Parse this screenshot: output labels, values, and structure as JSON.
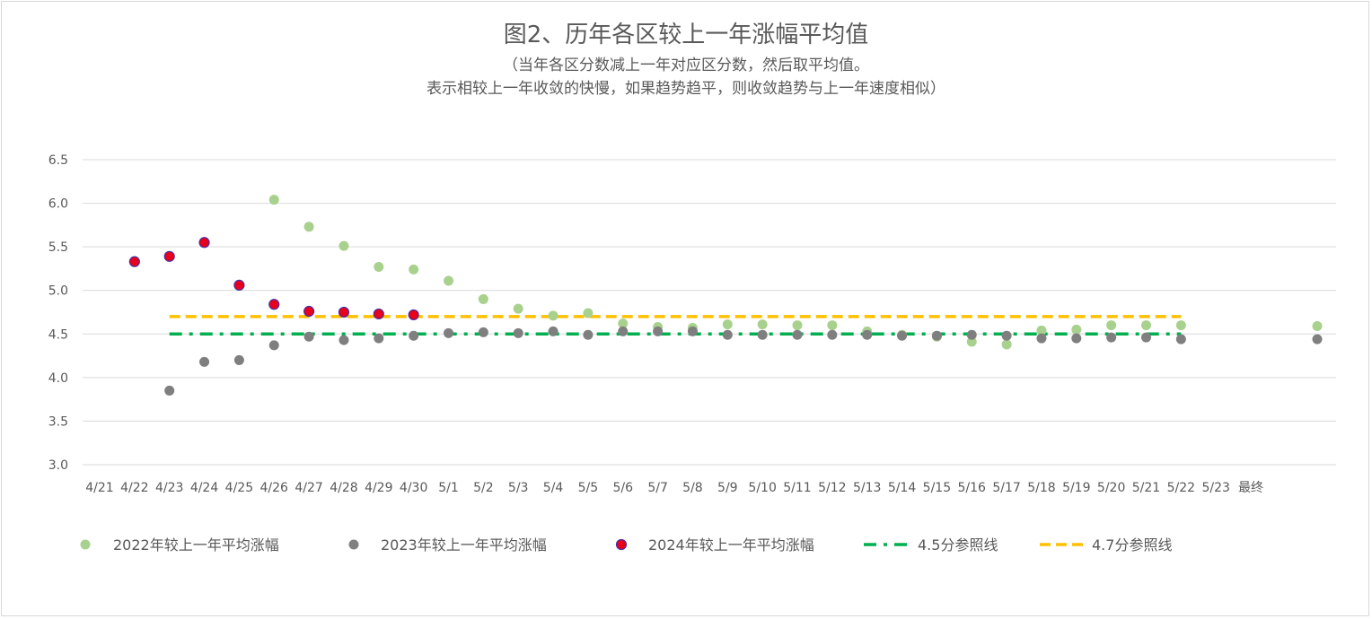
{
  "chart_data": {
    "type": "scatter",
    "title": "图2、历年各区较上一年涨幅平均值",
    "subtitle_lines": [
      "（当年各区分数减上一年对应区分数，然后取平均值。",
      "表示相较上一年收敛的快慢，如果趋势趋平，则收敛趋势与上一年速度相似）"
    ],
    "categories": [
      "4/21",
      "4/22",
      "4/23",
      "4/24",
      "4/25",
      "4/26",
      "4/27",
      "4/28",
      "4/29",
      "4/30",
      "5/1",
      "5/2",
      "5/3",
      "5/4",
      "5/5",
      "5/6",
      "5/7",
      "5/8",
      "5/9",
      "5/10",
      "5/11",
      "5/12",
      "5/13",
      "5/14",
      "5/15",
      "5/16",
      "5/17",
      "5/18",
      "5/19",
      "5/20",
      "5/21",
      "5/22",
      "5/23",
      "最终"
    ],
    "ylim": [
      3.0,
      6.5
    ],
    "yticks": [
      "3.0",
      "3.5",
      "4.0",
      "4.5",
      "5.0",
      "5.5",
      "6.0",
      "6.5"
    ],
    "grid": true,
    "legend_position": "bottom",
    "series": [
      {
        "name": "2022年较上一年平均涨幅",
        "color": "#a9d18e",
        "type": "scatter",
        "points": [
          {
            "x": "4/26",
            "y": 6.04
          },
          {
            "x": "4/27",
            "y": 5.73
          },
          {
            "x": "4/28",
            "y": 5.51
          },
          {
            "x": "4/29",
            "y": 5.27
          },
          {
            "x": "4/30",
            "y": 5.24
          },
          {
            "x": "5/1",
            "y": 5.11
          },
          {
            "x": "5/2",
            "y": 4.9
          },
          {
            "x": "5/3",
            "y": 4.79
          },
          {
            "x": "5/4",
            "y": 4.71
          },
          {
            "x": "5/5",
            "y": 4.74
          },
          {
            "x": "5/6",
            "y": 4.62
          },
          {
            "x": "5/7",
            "y": 4.58
          },
          {
            "x": "5/8",
            "y": 4.57
          },
          {
            "x": "5/9",
            "y": 4.61
          },
          {
            "x": "5/10",
            "y": 4.61
          },
          {
            "x": "5/11",
            "y": 4.6
          },
          {
            "x": "5/12",
            "y": 4.6
          },
          {
            "x": "5/13",
            "y": 4.53
          },
          {
            "x": "5/14",
            "y": 4.49
          },
          {
            "x": "5/15",
            "y": 4.47
          },
          {
            "x": "5/16",
            "y": 4.41
          },
          {
            "x": "5/17",
            "y": 4.38
          },
          {
            "x": "5/18",
            "y": 4.54
          },
          {
            "x": "5/19",
            "y": 4.55
          },
          {
            "x": "5/20",
            "y": 4.6
          },
          {
            "x": "5/21",
            "y": 4.6
          },
          {
            "x": "5/22",
            "y": 4.6
          },
          {
            "x": "最终",
            "y": 4.59
          }
        ]
      },
      {
        "name": "2023年较上一年平均涨幅",
        "color": "#7f7f7f",
        "type": "scatter",
        "points": [
          {
            "x": "4/23",
            "y": 3.85
          },
          {
            "x": "4/24",
            "y": 4.18
          },
          {
            "x": "4/25",
            "y": 4.2
          },
          {
            "x": "4/26",
            "y": 4.37
          },
          {
            "x": "4/27",
            "y": 4.47
          },
          {
            "x": "4/28",
            "y": 4.43
          },
          {
            "x": "4/29",
            "y": 4.45
          },
          {
            "x": "4/30",
            "y": 4.48
          },
          {
            "x": "5/1",
            "y": 4.51
          },
          {
            "x": "5/2",
            "y": 4.52
          },
          {
            "x": "5/3",
            "y": 4.51
          },
          {
            "x": "5/4",
            "y": 4.53
          },
          {
            "x": "5/5",
            "y": 4.49
          },
          {
            "x": "5/6",
            "y": 4.53
          },
          {
            "x": "5/7",
            "y": 4.53
          },
          {
            "x": "5/8",
            "y": 4.53
          },
          {
            "x": "5/9",
            "y": 4.49
          },
          {
            "x": "5/10",
            "y": 4.49
          },
          {
            "x": "5/11",
            "y": 4.49
          },
          {
            "x": "5/12",
            "y": 4.49
          },
          {
            "x": "5/13",
            "y": 4.49
          },
          {
            "x": "5/14",
            "y": 4.48
          },
          {
            "x": "5/15",
            "y": 4.48
          },
          {
            "x": "5/16",
            "y": 4.49
          },
          {
            "x": "5/17",
            "y": 4.48
          },
          {
            "x": "5/18",
            "y": 4.45
          },
          {
            "x": "5/19",
            "y": 4.45
          },
          {
            "x": "5/20",
            "y": 4.46
          },
          {
            "x": "5/21",
            "y": 4.46
          },
          {
            "x": "5/22",
            "y": 4.44
          },
          {
            "x": "最终",
            "y": 4.44
          }
        ]
      },
      {
        "name": "2024年较上一年平均涨幅",
        "color": "#e8001c",
        "stroke": "#4a2ea0",
        "type": "scatter",
        "points": [
          {
            "x": "4/22",
            "y": 5.33
          },
          {
            "x": "4/23",
            "y": 5.39
          },
          {
            "x": "4/24",
            "y": 5.55
          },
          {
            "x": "4/25",
            "y": 5.06
          },
          {
            "x": "4/26",
            "y": 4.84
          },
          {
            "x": "4/27",
            "y": 4.76
          },
          {
            "x": "4/28",
            "y": 4.75
          },
          {
            "x": "4/29",
            "y": 4.73
          },
          {
            "x": "4/30",
            "y": 4.72
          }
        ]
      },
      {
        "name": "4.5分参照线",
        "color": "#00b050",
        "type": "line",
        "dash": "dash-dot",
        "from": "4/23",
        "to": "5/22",
        "y": 4.5
      },
      {
        "name": "4.7分参照线",
        "color": "#ffc000",
        "type": "line",
        "dash": "dash",
        "from": "4/23",
        "to": "5/22",
        "y": 4.7
      }
    ]
  }
}
